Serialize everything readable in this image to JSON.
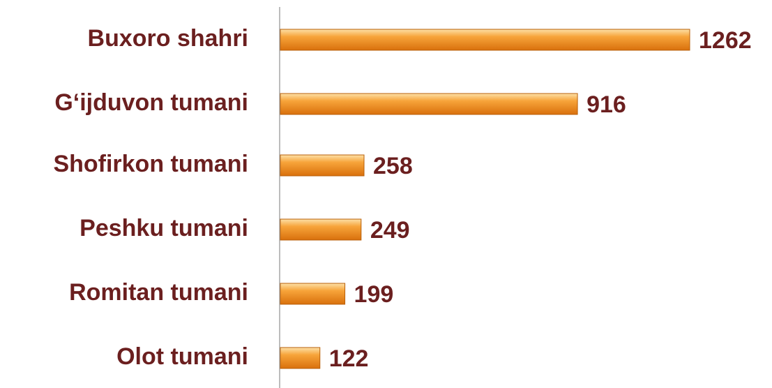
{
  "chart_data": {
    "type": "bar",
    "orientation": "horizontal",
    "categories": [
      "Buxoro shahri",
      "G‘ijduvon tumani",
      "Shofirkon tumani",
      "Peshku tumani",
      "Romitan tumani",
      "Olot tumani"
    ],
    "values": [
      1262,
      916,
      258,
      249,
      199,
      122
    ],
    "color": "#f28c1e"
  }
}
